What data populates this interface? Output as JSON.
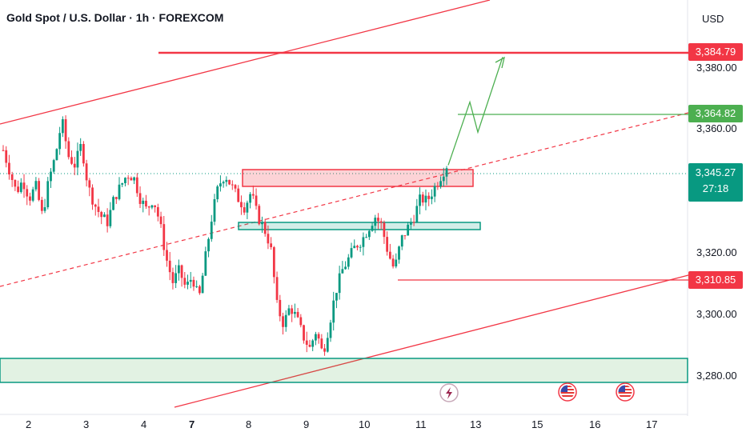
{
  "header": {
    "title": "Gold Spot / U.S. Dollar · 1h · FOREXCOM",
    "currency": "USD"
  },
  "price_tags": {
    "target_high": {
      "label": "3,384.79",
      "color": "#f23645"
    },
    "target_mid": {
      "label": "3,364.82",
      "color": "#4caf50"
    },
    "current": {
      "label": "3,345.27",
      "countdown": "27:18",
      "color": "#089981"
    },
    "support": {
      "label": "3,310.85",
      "color": "#f23645"
    }
  },
  "icons": {
    "event_flash": "lightning-icon",
    "us_flag_1": "us-flag-icon",
    "us_flag_2": "us-flag-icon"
  },
  "chart_data": {
    "type": "candlestick",
    "title": "Gold Spot / U.S. Dollar · 1h · FOREXCOM",
    "y_axis": {
      "ticks": [
        "3,380.00",
        "3,360.00",
        "3,320.00",
        "3,300.00",
        "3,280.00"
      ],
      "tick_values": [
        3380,
        3360,
        3320,
        3300,
        3280
      ],
      "range": [
        3264,
        3402
      ]
    },
    "x_axis": {
      "ticks": [
        "2",
        "3",
        "4",
        "7",
        "8",
        "9",
        "10",
        "11",
        "13",
        "15",
        "16",
        "17"
      ],
      "bold_ticks": [
        "7"
      ]
    },
    "price_path": [
      [
        0,
        3352
      ],
      [
        2,
        3345
      ],
      [
        4,
        3338
      ],
      [
        6,
        3342
      ],
      [
        8,
        3336
      ],
      [
        10,
        3340
      ],
      [
        12,
        3330
      ],
      [
        14,
        3342
      ],
      [
        16,
        3350
      ],
      [
        18,
        3362
      ],
      [
        20,
        3350
      ],
      [
        22,
        3347
      ],
      [
        24,
        3354
      ],
      [
        26,
        3340
      ],
      [
        28,
        3334
      ],
      [
        30,
        3330
      ],
      [
        32,
        3328
      ],
      [
        34,
        3336
      ],
      [
        36,
        3340
      ],
      [
        38,
        3344
      ],
      [
        40,
        3343
      ],
      [
        42,
        3336
      ],
      [
        44,
        3332
      ],
      [
        46,
        3336
      ],
      [
        48,
        3328
      ],
      [
        50,
        3316
      ],
      [
        52,
        3308
      ],
      [
        54,
        3312
      ],
      [
        56,
        3306
      ],
      [
        58,
        3310
      ],
      [
        60,
        3302
      ],
      [
        62,
        3316
      ],
      [
        64,
        3330
      ],
      [
        66,
        3340
      ],
      [
        68,
        3344
      ],
      [
        70,
        3340
      ],
      [
        72,
        3336
      ],
      [
        74,
        3333
      ],
      [
        76,
        3338
      ],
      [
        78,
        3330
      ],
      [
        80,
        3326
      ],
      [
        82,
        3320
      ],
      [
        84,
        3300
      ],
      [
        86,
        3294
      ],
      [
        88,
        3300
      ],
      [
        90,
        3296
      ],
      [
        92,
        3290
      ],
      [
        94,
        3286
      ],
      [
        96,
        3292
      ],
      [
        98,
        3284
      ],
      [
        100,
        3294
      ],
      [
        102,
        3305
      ],
      [
        104,
        3312
      ],
      [
        106,
        3316
      ],
      [
        108,
        3320
      ],
      [
        110,
        3322
      ],
      [
        112,
        3326
      ],
      [
        114,
        3330
      ],
      [
        116,
        3327
      ],
      [
        118,
        3318
      ],
      [
        120,
        3312
      ],
      [
        122,
        3322
      ],
      [
        124,
        3326
      ],
      [
        126,
        3330
      ],
      [
        128,
        3336
      ],
      [
        130,
        3335
      ],
      [
        132,
        3339
      ],
      [
        134,
        3343
      ],
      [
        136,
        3347
      ]
    ],
    "levels": [
      {
        "name": "target_high",
        "value": 3384.79,
        "color": "#f23645"
      },
      {
        "name": "target_mid",
        "value": 3364.82,
        "color": "#4caf50"
      },
      {
        "name": "current",
        "value": 3345.27,
        "color": "#089981"
      },
      {
        "name": "support",
        "value": 3310.85,
        "color": "#f23645"
      }
    ],
    "zones": [
      {
        "name": "resistance",
        "from": 3342.3,
        "to": 3347.6,
        "color": "#f23645"
      },
      {
        "name": "support",
        "from": 3327.9,
        "to": 3330.3,
        "color": "#089981"
      },
      {
        "name": "demand",
        "from": 3279.1,
        "to": 3286.8,
        "color": "#089981"
      }
    ],
    "projection": [
      [
        0,
        3347
      ],
      [
        1,
        3368
      ],
      [
        2,
        3358
      ],
      [
        3,
        3383
      ]
    ],
    "grid": false
  }
}
